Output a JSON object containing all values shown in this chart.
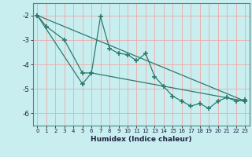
{
  "title": "",
  "xlabel": "Humidex (Indice chaleur)",
  "bg_color": "#c8eef0",
  "grid_color": "#f0a8a8",
  "line_color": "#2d7a6e",
  "xlim": [
    -0.5,
    23.5
  ],
  "ylim": [
    -6.5,
    -1.5
  ],
  "yticks": [
    -6,
    -5,
    -4,
    -3,
    -2
  ],
  "xticks": [
    0,
    1,
    2,
    3,
    4,
    5,
    6,
    7,
    8,
    9,
    10,
    11,
    12,
    13,
    14,
    15,
    16,
    17,
    18,
    19,
    20,
    21,
    22,
    23
  ],
  "series1_x": [
    0,
    1,
    3,
    5,
    6,
    7,
    8,
    9,
    10,
    11,
    12,
    13,
    14,
    15,
    16,
    17,
    18,
    19,
    20,
    21,
    22,
    23
  ],
  "series1_y": [
    -2.0,
    -2.45,
    -3.0,
    -4.35,
    -4.35,
    -2.05,
    -3.35,
    -3.55,
    -3.6,
    -3.85,
    -3.55,
    -4.5,
    -4.9,
    -5.3,
    -5.5,
    -5.7,
    -5.6,
    -5.8,
    -5.5,
    -5.35,
    -5.5,
    -5.45
  ],
  "series2_x": [
    0,
    5,
    6,
    23
  ],
  "series2_y": [
    -2.0,
    -4.8,
    -4.35,
    -5.5
  ],
  "series3_x": [
    0,
    23
  ],
  "series3_y": [
    -2.0,
    -5.5
  ]
}
